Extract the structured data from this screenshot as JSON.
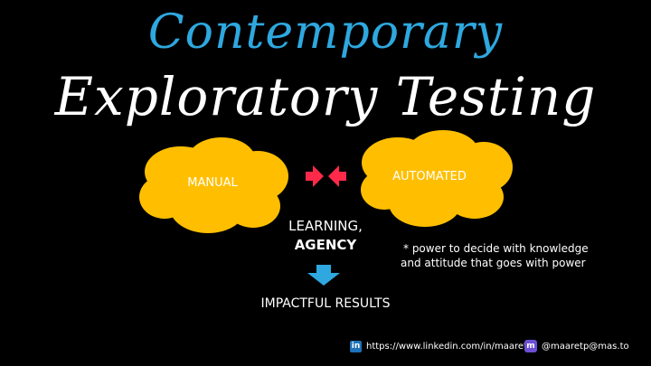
{
  "title": {
    "line1": "Contemporary",
    "line2": "Exploratory Testing"
  },
  "clouds": {
    "left_label": "MANUAL",
    "right_label": "AUTOMATED",
    "color": "#ffbf00"
  },
  "arrows_color": "#ff2a4a",
  "center": {
    "line1": "LEARNING,",
    "line2": "AGENCY",
    "result": "IMPACTFUL RESULTS",
    "down_arrow_color": "#2ea8df"
  },
  "note": {
    "line1": "* power to decide with knowledge",
    "line2": "and attitude that goes with power"
  },
  "footer": {
    "linkedin_icon": "linkedin-icon",
    "linkedin_url": "https://www.linkedin.com/in/maaret/",
    "mastodon_icon": "mastodon-icon",
    "mastodon_handle": "@maaretp@mas.to"
  }
}
